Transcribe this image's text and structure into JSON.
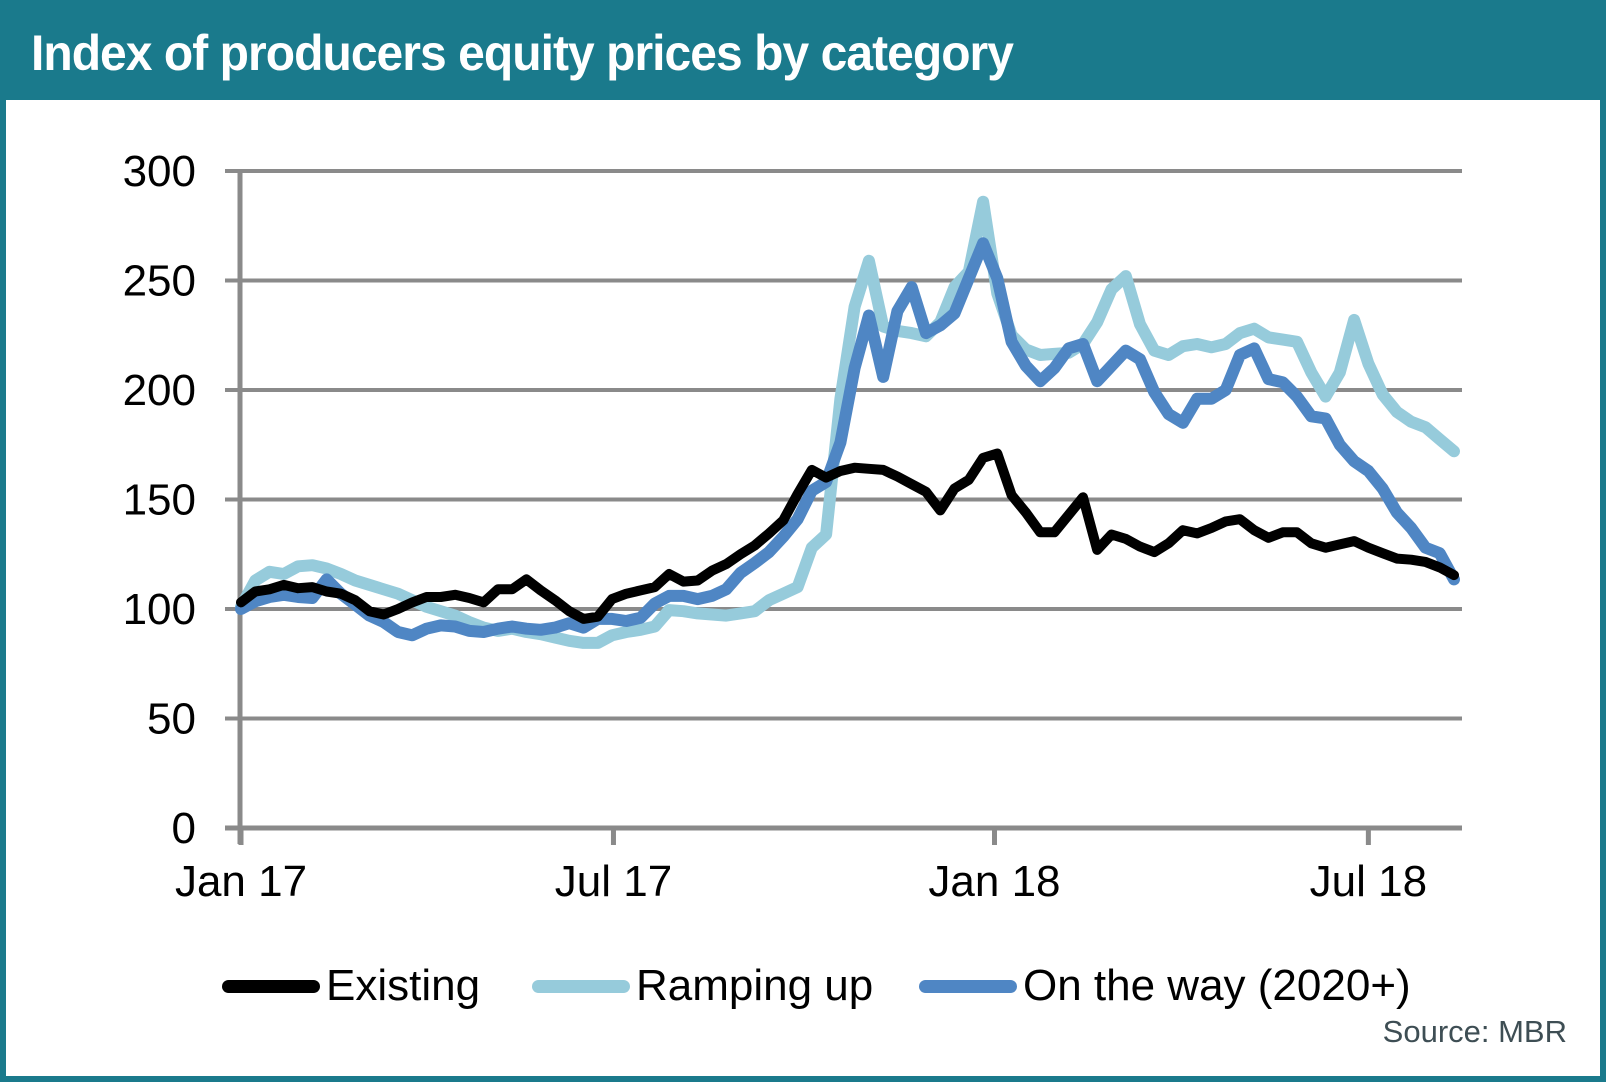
{
  "header": {
    "title": "Index of producers equity prices by category"
  },
  "source": {
    "label": "Source: MBR"
  },
  "colors": {
    "teal_brand": "#1A7A8C",
    "grid": "#8A8A8A",
    "existing": "#000000",
    "ramping_up": "#96CBDB",
    "on_the_way": "#4F86C4",
    "source_text": "#3E4E54",
    "background": "#FFFFFF"
  },
  "chart_data": {
    "type": "line",
    "title": "Index of producers equity prices by category",
    "xlabel": "",
    "ylabel": "",
    "ylim": [
      0,
      300
    ],
    "y_ticks": [
      0,
      50,
      100,
      150,
      200,
      250,
      300
    ],
    "grid": "horizontal",
    "legend_position": "bottom",
    "x_unit": "weekly index points, Jan 2017 to mid Aug 2018",
    "x_ticks": [
      {
        "label": "Jan 17",
        "pos": 0
      },
      {
        "label": "Jul 17",
        "pos": 26.1
      },
      {
        "label": "Jan 18",
        "pos": 52.8
      },
      {
        "label": "Jul 18",
        "pos": 79.0
      }
    ],
    "series": [
      {
        "name": "Existing",
        "color": "#000000",
        "stroke_width": 10,
        "values": [
          103,
          108,
          109,
          111,
          109.5,
          110,
          108,
          107,
          104,
          99,
          97.5,
          100,
          103,
          105.5,
          105.5,
          106.5,
          105,
          103,
          109,
          109,
          113.5,
          108.5,
          104,
          99,
          95.5,
          96.5,
          104.5,
          107,
          108.5,
          110,
          116,
          112.5,
          113,
          117.5,
          120.5,
          125,
          129,
          134.5,
          140.5,
          152.5,
          163.5,
          160,
          163,
          164.5,
          164,
          163.5,
          160.5,
          157,
          153.5,
          145,
          155,
          159,
          169,
          171,
          152,
          144,
          135,
          135,
          143,
          151,
          127,
          134,
          132,
          128.5,
          126,
          130,
          136,
          134.5,
          137,
          140,
          141,
          136,
          132.5,
          135,
          135,
          130,
          128,
          129.5,
          131,
          128,
          125.5,
          123,
          122.5,
          121.5,
          119,
          115.5
        ]
      },
      {
        "name": "Ramping up",
        "color": "#96CBDB",
        "stroke_width": 12,
        "values": [
          101,
          113,
          117,
          116,
          119.5,
          120,
          118.5,
          116,
          113,
          111,
          109,
          107,
          104,
          101,
          99,
          97,
          94,
          91.5,
          90,
          91,
          89.5,
          88.5,
          87,
          85.5,
          84.5,
          84.5,
          88,
          89.5,
          90.5,
          92,
          99.5,
          99,
          98,
          97.5,
          97,
          98,
          99,
          104,
          107,
          110,
          128,
          134,
          196,
          238,
          259,
          229,
          227,
          226,
          224.5,
          231,
          247,
          254,
          286,
          244,
          225,
          218.5,
          216,
          216.5,
          217,
          221,
          231,
          246,
          252,
          230,
          218,
          216,
          220,
          221,
          219.5,
          221,
          226,
          228,
          224,
          223,
          222,
          208,
          197,
          208,
          232,
          212,
          198,
          190,
          185.5,
          183,
          177.5,
          172
        ]
      },
      {
        "name": "On the way (2020+)",
        "color": "#4F86C4",
        "stroke_width": 12,
        "values": [
          100,
          103.5,
          105.5,
          106.5,
          105.5,
          105,
          113.5,
          107,
          102,
          97,
          94,
          89.5,
          88,
          91,
          92.5,
          92,
          90,
          89.5,
          91,
          92,
          91,
          90.5,
          91.5,
          93.5,
          91.5,
          95.5,
          95.5,
          94.5,
          96,
          102.5,
          106,
          106,
          104.5,
          106,
          109,
          116.5,
          121,
          126,
          133,
          141,
          154,
          158,
          176,
          210,
          234,
          206,
          236,
          247,
          226,
          229.5,
          235,
          251,
          267,
          251,
          222,
          211,
          204,
          210,
          219,
          221,
          204,
          211,
          218,
          214,
          199,
          189,
          185,
          196,
          196,
          200,
          216,
          219,
          205,
          203.5,
          197,
          188,
          187,
          175,
          167.5,
          163,
          155,
          144,
          137,
          128,
          125.5,
          113.5
        ]
      }
    ]
  }
}
